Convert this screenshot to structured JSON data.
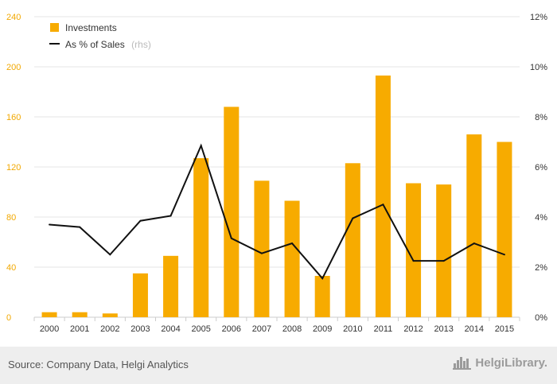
{
  "chart_data": {
    "type": "bar+line",
    "categories": [
      "2000",
      "2001",
      "2002",
      "2003",
      "2004",
      "2005",
      "2006",
      "2007",
      "2008",
      "2009",
      "2010",
      "2011",
      "2012",
      "2013",
      "2014",
      "2015"
    ],
    "series": [
      {
        "name": "Investments",
        "kind": "bar",
        "axis": "left",
        "values": [
          4,
          4,
          3,
          35,
          49,
          127,
          168,
          109,
          93,
          33,
          123,
          193,
          107,
          106,
          146,
          140
        ]
      },
      {
        "name": "As % of Sales",
        "legend_suffix": "(rhs)",
        "kind": "line",
        "axis": "right",
        "values": [
          3.7,
          3.6,
          2.5,
          3.85,
          4.05,
          6.85,
          3.15,
          2.55,
          2.95,
          1.55,
          3.95,
          4.5,
          2.25,
          2.25,
          2.95,
          2.5
        ]
      }
    ],
    "left_axis": {
      "ylim": [
        0,
        240
      ],
      "ticks": [
        0,
        40,
        80,
        120,
        160,
        200,
        240
      ]
    },
    "right_axis": {
      "ylim": [
        0,
        12
      ],
      "ticks": [
        "0%",
        "2%",
        "4%",
        "6%",
        "8%",
        "10%",
        "12%"
      ]
    },
    "legend_position": "top-left",
    "grid": true
  },
  "colors": {
    "bar": "#f7ab00",
    "line": "#111111",
    "left_tick": "#f2a800"
  },
  "footer": {
    "source": "Source: Company Data, Helgi Analytics",
    "brand": "HelgiLibrary."
  }
}
